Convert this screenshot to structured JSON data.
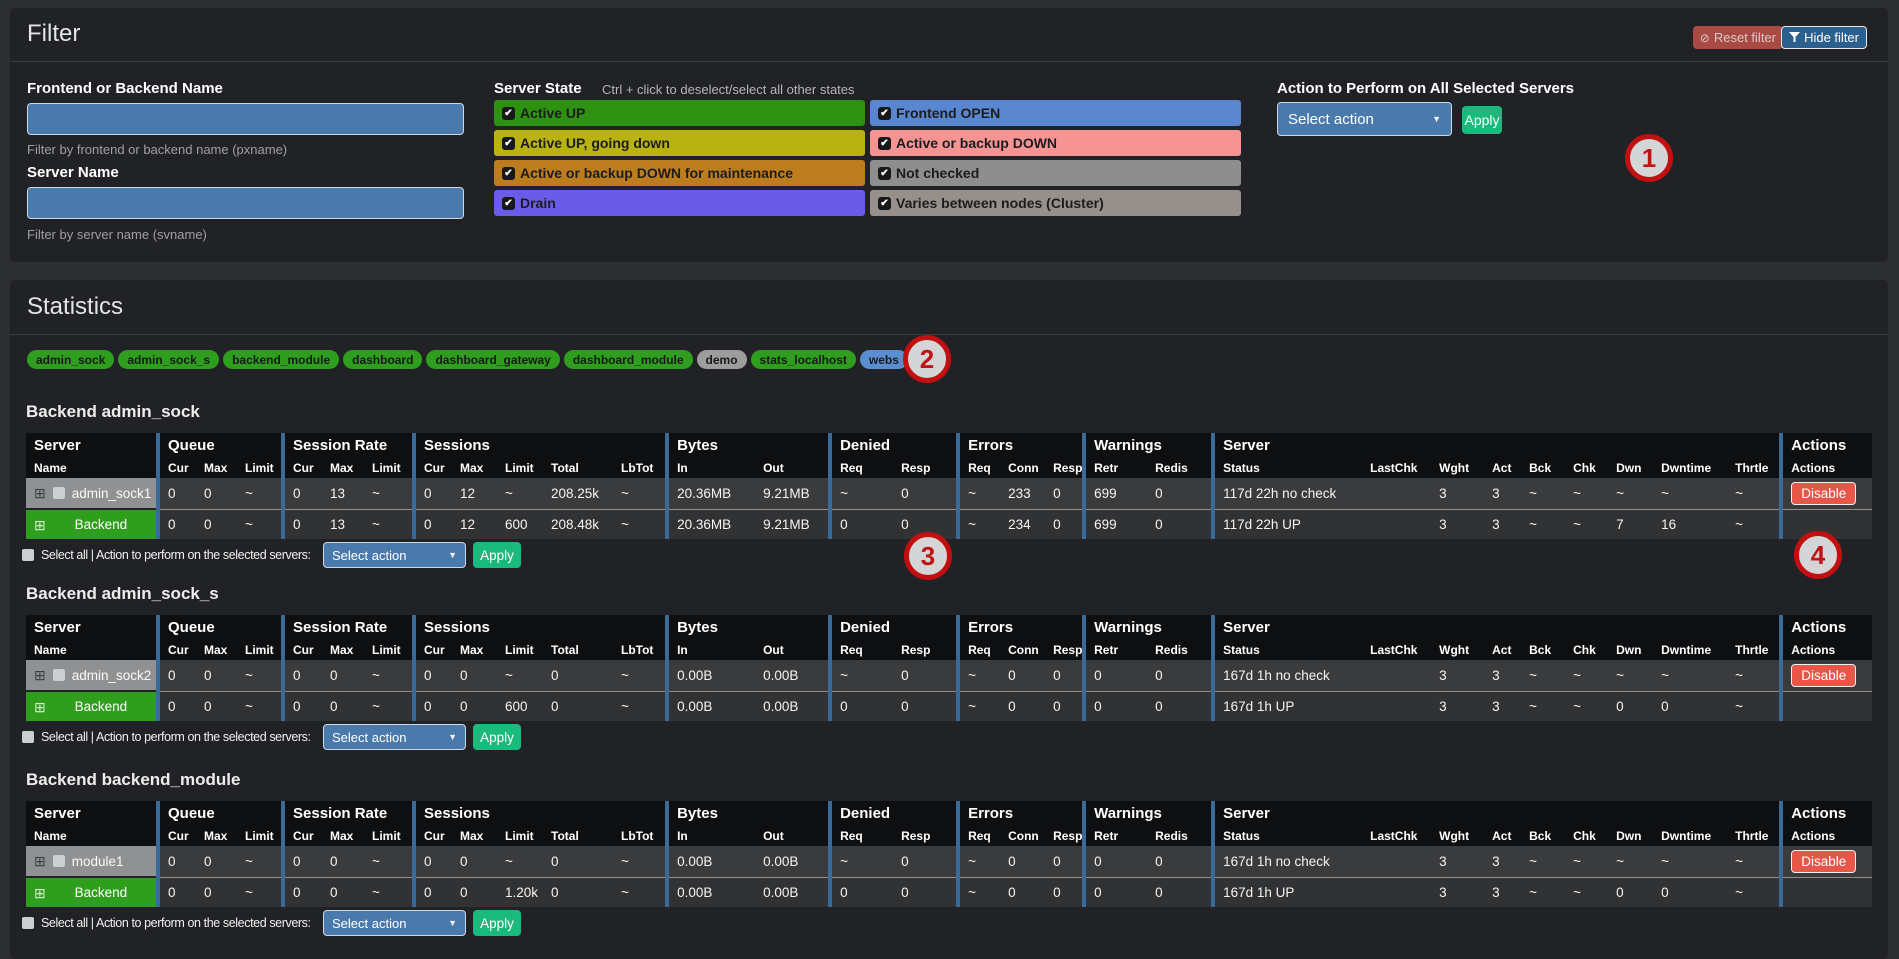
{
  "filter": {
    "title": "Filter",
    "reset_button": "Reset filter",
    "hide_button": "Hide filter",
    "name_filter": {
      "label": "Frontend or Backend Name",
      "value": "",
      "help": "Filter by frontend or backend name (pxname)"
    },
    "server_filter": {
      "label": "Server Name",
      "value": "",
      "help": "Filter by server name (svname)"
    },
    "server_state": {
      "label": "Server State",
      "hint": "Ctrl + click to deselect/select all other states",
      "states": [
        {
          "label": "Active UP",
          "color": "#2e9111",
          "checked": true
        },
        {
          "label": "Active UP, going down",
          "color": "#b9b312",
          "checked": true
        },
        {
          "label": "Active or backup DOWN for maintenance",
          "color": "#bd7c1e",
          "checked": true
        },
        {
          "label": "Drain",
          "color": "#6a5ce8",
          "checked": true
        },
        {
          "label": "Frontend OPEN",
          "color": "#5a86cf",
          "checked": true
        },
        {
          "label": "Active or backup DOWN",
          "color": "#f69494",
          "checked": true
        },
        {
          "label": "Not checked",
          "color": "#8e8e8e",
          "checked": true
        },
        {
          "label": "Varies between nodes (Cluster)",
          "color": "#97908a",
          "checked": true
        }
      ]
    },
    "action": {
      "label": "Action to Perform on All Selected Servers",
      "select_value": "Select action",
      "apply_label": "Apply"
    }
  },
  "statistics": {
    "title": "Statistics",
    "badges": [
      {
        "label": "admin_sock",
        "color": "#2f9e1e"
      },
      {
        "label": "admin_sock_s",
        "color": "#2f9e1e"
      },
      {
        "label": "backend_module",
        "color": "#2f9e1e"
      },
      {
        "label": "dashboard",
        "color": "#2f9e1e"
      },
      {
        "label": "dashboard_gateway",
        "color": "#2f9e1e"
      },
      {
        "label": "dashboard_module",
        "color": "#2f9e1e"
      },
      {
        "label": "demo",
        "color": "#9d9d9d"
      },
      {
        "label": "stats_localhost",
        "color": "#2f9e1e"
      },
      {
        "label": "webs",
        "color": "#5b8ed1"
      }
    ],
    "table_columns": {
      "groups": [
        {
          "label": "Server",
          "span": 1
        },
        {
          "label": "Queue",
          "span": 3
        },
        {
          "label": "Session Rate",
          "span": 3
        },
        {
          "label": "Sessions",
          "span": 5
        },
        {
          "label": "Bytes",
          "span": 2
        },
        {
          "label": "Denied",
          "span": 2
        },
        {
          "label": "Errors",
          "span": 3
        },
        {
          "label": "Warnings",
          "span": 2
        },
        {
          "label": "Server",
          "span": 9
        },
        {
          "label": "Actions",
          "span": 1
        }
      ],
      "sub": [
        "Name",
        "Cur",
        "Max",
        "Limit",
        "Cur",
        "Max",
        "Limit",
        "Cur",
        "Max",
        "Limit",
        "Total",
        "LbTot",
        "In",
        "Out",
        "Req",
        "Resp",
        "Req",
        "Conn",
        "Resp",
        "Retr",
        "Redis",
        "Status",
        "LastChk",
        "Wght",
        "Act",
        "Bck",
        "Chk",
        "Dwn",
        "Dwntime",
        "Thrtle",
        "Actions"
      ]
    },
    "select_all_label": "Select all | Action to perform on the selected servers:",
    "select_action_value": "Select action",
    "apply_label": "Apply",
    "backends": [
      {
        "title": "Backend admin_sock",
        "rows": [
          {
            "type": "server",
            "name": "admin_sock1",
            "cells": [
              "0",
              "0",
              "~",
              "0",
              "13",
              "~",
              "0",
              "12",
              "~",
              "208.25k",
              "~",
              "20.36MB",
              "9.21MB",
              "~",
              "0",
              "~",
              "233",
              "0",
              "699",
              "0",
              "117d 22h no check",
              "",
              "3",
              "3",
              "~",
              "~",
              "~",
              "~",
              "~"
            ],
            "action": "Disable"
          },
          {
            "type": "backend",
            "name": "Backend",
            "cells": [
              "0",
              "0",
              "~",
              "0",
              "13",
              "~",
              "0",
              "12",
              "600",
              "208.48k",
              "~",
              "20.36MB",
              "9.21MB",
              "0",
              "0",
              "~",
              "234",
              "0",
              "699",
              "0",
              "117d 22h UP",
              "",
              "3",
              "3",
              "~",
              "~",
              "7",
              "16",
              "~"
            ],
            "action": ""
          }
        ]
      },
      {
        "title": "Backend admin_sock_s",
        "rows": [
          {
            "type": "server",
            "name": "admin_sock2",
            "cells": [
              "0",
              "0",
              "~",
              "0",
              "0",
              "~",
              "0",
              "0",
              "~",
              "0",
              "~",
              "0.00B",
              "0.00B",
              "~",
              "0",
              "~",
              "0",
              "0",
              "0",
              "0",
              "167d 1h no check",
              "",
              "3",
              "3",
              "~",
              "~",
              "~",
              "~",
              "~"
            ],
            "action": "Disable"
          },
          {
            "type": "backend",
            "name": "Backend",
            "cells": [
              "0",
              "0",
              "~",
              "0",
              "0",
              "~",
              "0",
              "0",
              "600",
              "0",
              "~",
              "0.00B",
              "0.00B",
              "0",
              "0",
              "~",
              "0",
              "0",
              "0",
              "0",
              "167d 1h UP",
              "",
              "3",
              "3",
              "~",
              "~",
              "0",
              "0",
              "~"
            ],
            "action": ""
          }
        ]
      },
      {
        "title": "Backend backend_module",
        "rows": [
          {
            "type": "server",
            "name": "module1",
            "cells": [
              "0",
              "0",
              "~",
              "0",
              "0",
              "~",
              "0",
              "0",
              "~",
              "0",
              "~",
              "0.00B",
              "0.00B",
              "~",
              "0",
              "~",
              "0",
              "0",
              "0",
              "0",
              "167d 1h no check",
              "",
              "3",
              "3",
              "~",
              "~",
              "~",
              "~",
              "~"
            ],
            "action": "Disable"
          },
          {
            "type": "backend",
            "name": "Backend",
            "cells": [
              "0",
              "0",
              "~",
              "0",
              "0",
              "~",
              "0",
              "0",
              "1.20k",
              "0",
              "~",
              "0.00B",
              "0.00B",
              "0",
              "0",
              "~",
              "0",
              "0",
              "0",
              "0",
              "167d 1h UP",
              "",
              "3",
              "3",
              "~",
              "~",
              "0",
              "0",
              "~"
            ],
            "action": ""
          }
        ]
      }
    ]
  },
  "annotations": [
    "1",
    "2",
    "3",
    "4"
  ]
}
